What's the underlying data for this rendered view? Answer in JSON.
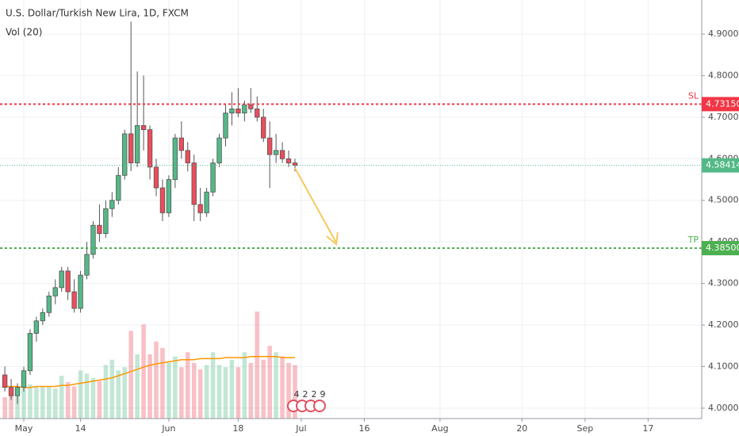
{
  "chart_data": {
    "type": "candlestick",
    "title": "U.S. Dollar/Turkish New Lira, 1D, FXCM",
    "volume_title": "Vol (20)",
    "xlim": [
      -0.77,
      110.5
    ],
    "xticks": [
      {
        "value": 3,
        "label": "May"
      },
      {
        "value": 12,
        "label": "14"
      },
      {
        "value": 26,
        "label": "Jun"
      },
      {
        "value": 37,
        "label": "18"
      },
      {
        "value": 47,
        "label": "Jul"
      },
      {
        "value": 57,
        "label": "16"
      },
      {
        "value": 69,
        "label": "Aug"
      },
      {
        "value": 82,
        "label": "20"
      },
      {
        "value": 92,
        "label": "Sep"
      },
      {
        "value": 102,
        "label": "17"
      }
    ],
    "ylim": [
      3.975,
      4.982
    ],
    "yticks": [
      {
        "value": 4.0,
        "label": "4.00000"
      },
      {
        "value": 4.1,
        "label": "4.10000"
      },
      {
        "value": 4.2,
        "label": "4.20000"
      },
      {
        "value": 4.3,
        "label": "4.30000"
      },
      {
        "value": 4.4,
        "label": "4.40000"
      },
      {
        "value": 4.5,
        "label": "4.50000"
      },
      {
        "value": 4.6,
        "label": "4.60000"
      },
      {
        "value": 4.7,
        "label": "4.70000"
      },
      {
        "value": 4.8,
        "label": "4.80000"
      },
      {
        "value": 4.9,
        "label": "4.90000"
      }
    ],
    "grid": true,
    "up_color": "#53b987",
    "down_color": "#eb4d5c",
    "open": [
      4.08,
      4.05,
      4.03,
      4.05,
      4.09,
      4.18,
      4.21,
      4.23,
      4.27,
      4.29,
      4.33,
      4.28,
      4.24,
      4.32,
      4.37,
      4.44,
      4.42,
      4.48,
      4.5,
      4.56,
      4.66,
      4.59,
      4.68,
      4.67,
      4.58,
      4.53,
      4.47,
      4.55,
      4.65,
      4.62,
      4.59,
      4.49,
      4.47,
      4.52,
      4.59,
      4.65,
      4.71,
      4.72,
      4.71,
      4.73,
      4.72,
      4.7,
      4.65,
      4.61,
      4.62,
      4.6,
      4.59
    ],
    "high": [
      4.1,
      4.07,
      4.06,
      4.1,
      4.19,
      4.22,
      4.24,
      4.28,
      4.31,
      4.34,
      4.34,
      4.31,
      4.33,
      4.4,
      4.45,
      4.49,
      4.5,
      4.52,
      4.58,
      4.67,
      4.93,
      4.81,
      4.8,
      4.68,
      4.6,
      4.55,
      4.56,
      4.66,
      4.69,
      4.64,
      4.61,
      4.53,
      4.53,
      4.6,
      4.66,
      4.73,
      4.76,
      4.77,
      4.74,
      4.77,
      4.75,
      4.72,
      4.69,
      4.66,
      4.64,
      4.62,
      4.6
    ],
    "low": [
      4.04,
      4.02,
      4.01,
      4.04,
      4.08,
      4.16,
      4.2,
      4.22,
      4.25,
      4.28,
      4.26,
      4.23,
      4.23,
      4.31,
      4.36,
      4.4,
      4.41,
      4.46,
      4.49,
      4.55,
      4.57,
      4.58,
      4.62,
      4.55,
      4.51,
      4.45,
      4.46,
      4.53,
      4.6,
      4.57,
      4.45,
      4.45,
      4.46,
      4.51,
      4.58,
      4.63,
      4.68,
      4.7,
      4.69,
      4.71,
      4.69,
      4.64,
      4.53,
      4.59,
      4.59,
      4.58,
      4.57
    ],
    "close": [
      4.05,
      4.03,
      4.05,
      4.09,
      4.18,
      4.21,
      4.23,
      4.27,
      4.29,
      4.33,
      4.28,
      4.24,
      4.32,
      4.37,
      4.44,
      4.42,
      4.48,
      4.5,
      4.56,
      4.66,
      4.59,
      4.68,
      4.67,
      4.58,
      4.53,
      4.47,
      4.55,
      4.65,
      4.62,
      4.59,
      4.49,
      4.47,
      4.52,
      4.59,
      4.65,
      4.71,
      4.72,
      4.71,
      4.73,
      4.72,
      4.7,
      4.65,
      4.61,
      4.62,
      4.6,
      4.59,
      4.58414
    ],
    "volume_lim": [
      0,
      100
    ],
    "volume": [
      20,
      25,
      30,
      28,
      32,
      30,
      30,
      30,
      28,
      40,
      34,
      30,
      45,
      42,
      38,
      35,
      50,
      55,
      45,
      48,
      82,
      60,
      88,
      60,
      72,
      66,
      52,
      58,
      48,
      62,
      52,
      46,
      50,
      62,
      50,
      48,
      55,
      48,
      62,
      52,
      100,
      55,
      68,
      62,
      58,
      52,
      50
    ],
    "volume_ma": [
      30,
      30,
      30,
      29,
      29,
      30,
      30,
      30,
      30,
      31,
      31,
      32,
      33,
      34,
      35,
      36,
      37,
      38,
      40,
      42,
      44,
      46,
      48,
      50,
      51,
      52,
      53,
      54,
      55,
      55,
      55,
      56,
      56,
      56,
      56,
      57,
      57,
      57,
      57,
      58,
      58,
      58,
      58,
      58,
      57,
      57,
      57
    ],
    "volume_ma_color": "#ff9800",
    "levels": [
      {
        "name": "SL",
        "value": 4.7315,
        "label": "4.73150",
        "color": "#f23645"
      },
      {
        "name": "TP",
        "value": 4.385,
        "label": "4.38500",
        "color": "#4caf50"
      }
    ],
    "last_price": 4.58414,
    "last_price_color": "#53b987",
    "events": [
      "4",
      "2",
      "2",
      "9"
    ]
  }
}
